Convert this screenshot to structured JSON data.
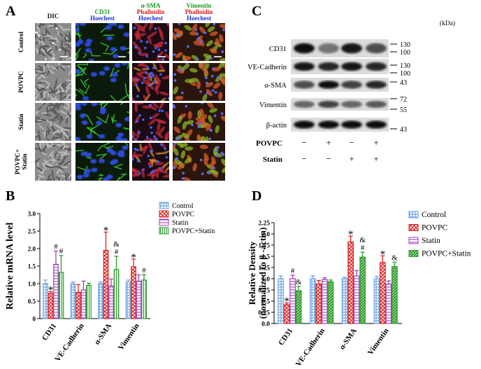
{
  "panel_labels": {
    "a": "A",
    "b": "B",
    "c": "C",
    "d": "D"
  },
  "micrograph": {
    "columns": [
      {
        "lines": [
          {
            "text": "DIC",
            "color": "#111111"
          }
        ]
      },
      {
        "lines": [
          {
            "text": "CD31",
            "color": "#1a9a1a"
          },
          {
            "text": "Hoechest",
            "color": "#1a2fd6"
          }
        ]
      },
      {
        "lines": [
          {
            "text": "α-SMA",
            "color": "#1a9a1a"
          },
          {
            "text": "Phalloidin",
            "color": "#d61a1a"
          },
          {
            "text": "Hoechest",
            "color": "#1a2fd6"
          }
        ]
      },
      {
        "lines": [
          {
            "text": "Vimentin",
            "color": "#1a9a1a"
          },
          {
            "text": "Phalloidin",
            "color": "#d61a1a"
          },
          {
            "text": "Hoechest",
            "color": "#1a2fd6"
          }
        ]
      }
    ],
    "rows": [
      {
        "lines": [
          "Control"
        ]
      },
      {
        "lines": [
          "POVPC"
        ]
      },
      {
        "lines": [
          "Statin"
        ]
      },
      {
        "lines": [
          "POVPC+",
          "Statin"
        ]
      }
    ],
    "panel_styles": [
      "dic",
      "cd31",
      "sma",
      "vim"
    ]
  },
  "western": {
    "unit_label": "(kDa)",
    "bands": [
      {
        "label": "CD31",
        "markers": [
          "130",
          "100"
        ],
        "intensity": [
          0.95,
          0.55,
          0.9,
          0.7
        ]
      },
      {
        "label": "VE-Cadherin",
        "markers": [
          "130",
          "100"
        ],
        "intensity": [
          0.9,
          0.85,
          0.9,
          0.85
        ]
      },
      {
        "label": "α-SMA",
        "markers": [
          "43"
        ],
        "intensity": [
          0.7,
          0.95,
          0.75,
          0.85
        ]
      },
      {
        "label": "Vimentin",
        "markers": [
          "72",
          "55"
        ],
        "intensity": [
          0.6,
          0.75,
          0.6,
          0.65
        ]
      },
      {
        "label": "β-actin",
        "markers": [
          "43"
        ],
        "intensity": [
          0.95,
          0.95,
          0.95,
          0.95
        ]
      }
    ],
    "treatments": [
      {
        "label": "POVPC",
        "signs": [
          "−",
          "+",
          "−",
          "+"
        ]
      },
      {
        "label": "Statin",
        "signs": [
          "−",
          "−",
          "+",
          "+"
        ]
      }
    ]
  },
  "chart_data": [
    {
      "id": "B",
      "type": "bar",
      "ylabel": "Relative mRNA level",
      "ylim": [
        0,
        3.0
      ],
      "yticks": [
        "0",
        "0.5",
        "1.0",
        "1.5",
        "2.0",
        "2.5",
        "3.0"
      ],
      "categories": [
        "CD31",
        "VE-Cadherin",
        "α-SMA",
        "Vimentin"
      ],
      "series": [
        {
          "name": "Control",
          "color": "#7fa8e0",
          "values": [
            1.0,
            1.0,
            1.0,
            1.05
          ],
          "errors": [
            0.1,
            0.05,
            0.05,
            0.05
          ]
        },
        {
          "name": "POVPC",
          "color": "#e02020",
          "values": [
            0.72,
            0.75,
            1.95,
            1.48
          ],
          "errors": [
            0.05,
            0.22,
            0.52,
            0.22
          ]
        },
        {
          "name": "Statin",
          "color": "#a040c0",
          "values": [
            1.55,
            0.82,
            0.93,
            1.07
          ],
          "errors": [
            0.38,
            0.25,
            0.2,
            0.18
          ]
        },
        {
          "name": "POVPC+Statin",
          "color": "#2a9a2a",
          "values": [
            1.32,
            0.95,
            1.4,
            1.1
          ],
          "errors": [
            0.48,
            0.06,
            0.38,
            0.15
          ]
        }
      ],
      "annotations": [
        {
          "category": 0,
          "series": 1,
          "text": "*"
        },
        {
          "category": 0,
          "series": 2,
          "text": "#"
        },
        {
          "category": 0,
          "series": 3,
          "text": "#"
        },
        {
          "category": 2,
          "series": 1,
          "text": "*"
        },
        {
          "category": 2,
          "series": 3,
          "text": "#"
        },
        {
          "category": 2,
          "series": 3,
          "text": "&"
        },
        {
          "category": 3,
          "series": 1,
          "text": "*"
        },
        {
          "category": 3,
          "series": 3,
          "text": "#"
        }
      ]
    },
    {
      "id": "D",
      "type": "bar",
      "ylabel_lines": [
        "Relative Density",
        "(normalized to β -actin)"
      ],
      "ylim": [
        0,
        2.25
      ],
      "yticks": [
        "0.0",
        "0.25",
        "0.5",
        "0.75",
        "1.0",
        "1.25",
        "1.5",
        "1.75",
        "2.0",
        "2.25"
      ],
      "categories": [
        "CD31",
        "VE-Cadherin",
        "α-SMA",
        "Vimentin"
      ],
      "series": [
        {
          "name": "Control",
          "color": "#6aa6e0",
          "values": [
            1.0,
            1.0,
            1.0,
            1.0
          ],
          "errors": [
            0.06,
            0.06,
            0.03,
            0.05
          ]
        },
        {
          "name": "POVPC",
          "color": "#e02020",
          "values": [
            0.42,
            0.88,
            1.82,
            1.36
          ],
          "errors": [
            0.04,
            0.08,
            0.13,
            0.15
          ]
        },
        {
          "name": "Statin",
          "color": "#a040c0",
          "values": [
            1.0,
            0.98,
            1.06,
            0.88
          ],
          "errors": [
            0.08,
            0.04,
            0.12,
            0.07
          ]
        },
        {
          "name": "POVPC+Statin",
          "color": "#2a9a2a",
          "values": [
            0.73,
            0.93,
            1.48,
            1.27
          ],
          "errors": [
            0.1,
            0.04,
            0.11,
            0.1
          ]
        }
      ],
      "annotations": [
        {
          "category": 0,
          "series": 1,
          "text": "*"
        },
        {
          "category": 0,
          "series": 2,
          "text": "#"
        },
        {
          "category": 0,
          "series": 3,
          "text": "&"
        },
        {
          "category": 2,
          "series": 1,
          "text": "*"
        },
        {
          "category": 2,
          "series": 3,
          "text": "#"
        },
        {
          "category": 2,
          "series": 3,
          "text": "&"
        },
        {
          "category": 3,
          "series": 1,
          "text": "*"
        },
        {
          "category": 3,
          "series": 3,
          "text": "&"
        }
      ]
    }
  ]
}
